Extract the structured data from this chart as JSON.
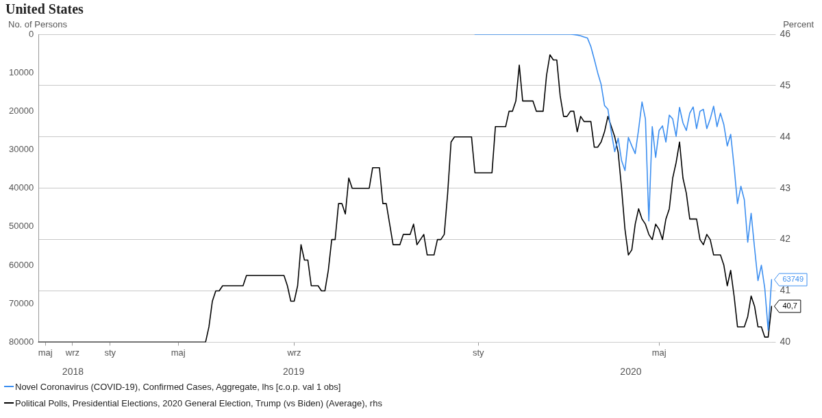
{
  "chart_data": {
    "type": "line",
    "title": "United States",
    "ylabel": "No. of Persons",
    "y2label": "Percent",
    "categories": [
      null,
      null,
      "maj",
      null,
      null,
      null,
      null,
      null,
      null,
      null,
      "wrz",
      null,
      null,
      null,
      null,
      null,
      null,
      null,
      null,
      null,
      null,
      "sty",
      null,
      null,
      null,
      null,
      null,
      null,
      null,
      null,
      null,
      null,
      null,
      null,
      null,
      null,
      null,
      null,
      null,
      null,
      null,
      "maj",
      null,
      null,
      null,
      null,
      null,
      null,
      null,
      null,
      null,
      null,
      null,
      null,
      null,
      null,
      null,
      null,
      null,
      null,
      null,
      null,
      null,
      null,
      null,
      null,
      null,
      null,
      null,
      null,
      null,
      null,
      null,
      null,
      null,
      "wrz",
      null,
      null,
      null,
      null,
      null,
      null,
      null,
      null,
      null,
      null,
      null,
      null,
      null,
      null,
      null,
      null,
      null,
      null,
      null,
      null,
      null,
      null,
      null,
      null,
      null,
      null,
      null,
      null,
      null,
      null,
      null,
      null,
      null,
      null,
      null,
      null,
      null,
      null,
      null,
      null,
      null,
      null,
      null,
      null,
      null,
      null,
      null,
      null,
      null,
      null,
      null,
      null,
      null,
      "sty",
      null,
      null,
      null,
      null,
      null,
      null,
      null,
      null,
      null,
      null,
      null,
      null,
      null,
      null,
      null,
      null,
      null,
      null,
      null,
      null,
      null,
      null,
      null,
      null,
      null,
      null,
      null,
      null,
      null,
      null,
      null,
      null,
      null,
      null,
      null,
      null,
      null,
      null,
      null,
      null,
      null,
      null,
      null,
      null,
      null,
      null,
      null,
      null,
      null,
      null,
      null,
      null,
      "maj",
      null,
      null,
      null,
      null,
      null,
      null,
      null,
      null,
      null,
      null,
      null,
      null,
      null,
      null,
      null,
      null,
      null,
      null,
      null,
      null,
      null,
      null,
      null,
      null,
      null,
      null,
      null,
      null,
      null,
      null,
      null,
      null,
      null
    ],
    "series": [
      {
        "name": "Novel Coronavirus (COVID-19), Confirmed Cases, Aggregate, lhs [c.o.p. val 1 obs]",
        "color": "#3b8ef0",
        "values": [
          null,
          null,
          null,
          null,
          null,
          null,
          null,
          null,
          null,
          null,
          null,
          null,
          null,
          null,
          null,
          null,
          null,
          null,
          null,
          null,
          null,
          null,
          null,
          null,
          null,
          null,
          null,
          null,
          null,
          null,
          null,
          null,
          null,
          null,
          null,
          null,
          null,
          null,
          null,
          null,
          null,
          null,
          null,
          null,
          null,
          null,
          null,
          null,
          null,
          null,
          null,
          null,
          null,
          null,
          null,
          null,
          null,
          null,
          null,
          null,
          null,
          null,
          null,
          null,
          null,
          null,
          null,
          null,
          null,
          null,
          null,
          null,
          null,
          null,
          null,
          null,
          null,
          null,
          null,
          null,
          null,
          null,
          null,
          null,
          null,
          null,
          null,
          null,
          null,
          null,
          null,
          null,
          null,
          null,
          null,
          null,
          null,
          null,
          null,
          null,
          null,
          null,
          null,
          null,
          null,
          null,
          null,
          null,
          null,
          null,
          null,
          null,
          null,
          null,
          null,
          null,
          null,
          null,
          null,
          null,
          null,
          null,
          null,
          null,
          null,
          null,
          null,
          null,
          0,
          0,
          0,
          0,
          0,
          0,
          0,
          0,
          0,
          0,
          0,
          0,
          0,
          0,
          0,
          0,
          0,
          0,
          0,
          0,
          0,
          0,
          0,
          0,
          0,
          0,
          0,
          0,
          0,
          100,
          200,
          400,
          700,
          1000,
          3200,
          6500,
          10000,
          13000,
          18500,
          19500,
          25500,
          30500,
          27000,
          32800,
          35400,
          26800,
          29000,
          31000,
          24700,
          17600,
          22000,
          48500,
          24000,
          32000,
          25000,
          23800,
          28000,
          21000,
          22000,
          26500,
          19000,
          23000,
          25000,
          20500,
          18900,
          24500,
          20000,
          19500,
          24500,
          22000,
          18700,
          24000,
          20500,
          23500,
          29000,
          26000,
          34400,
          44000,
          39500,
          43000,
          54000,
          46500,
          55500,
          64000,
          60000,
          66000,
          76900,
          63749
        ],
        "value_labels": [
          null,
          null,
          null,
          null,
          null,
          null,
          null,
          null,
          null,
          null,
          null,
          null,
          null,
          null,
          null,
          null,
          null,
          null,
          null,
          null,
          null,
          null,
          null,
          null,
          null,
          null,
          null,
          null,
          null,
          null,
          null,
          null,
          null,
          null,
          null,
          null,
          null,
          null,
          null,
          null,
          null,
          null,
          null,
          null,
          null,
          null,
          null,
          null,
          null,
          null,
          null,
          null,
          null,
          null,
          null,
          null,
          null,
          null,
          null,
          null,
          null,
          null,
          null,
          null,
          null,
          null,
          null,
          null,
          null,
          null,
          null,
          null,
          null,
          null,
          null,
          null,
          null,
          null,
          null,
          null,
          null,
          null,
          null,
          null,
          null,
          null,
          null,
          null,
          null,
          null,
          null,
          null,
          null,
          null,
          null,
          null,
          null,
          null,
          null,
          null,
          null,
          null,
          null,
          null,
          null,
          null,
          null,
          null,
          null,
          null,
          null,
          null,
          null,
          null,
          null,
          null,
          null,
          null,
          null,
          null,
          null,
          null,
          null,
          null,
          null,
          null,
          null,
          null,
          null,
          null,
          null,
          null,
          null,
          null,
          null,
          null,
          null,
          null,
          null,
          null,
          null,
          null,
          null,
          null,
          null,
          null,
          null,
          null,
          null,
          null,
          null,
          null,
          null,
          null,
          null,
          null,
          null,
          null,
          null,
          null,
          null,
          null,
          null,
          null,
          null,
          null,
          null,
          null,
          null,
          null,
          null,
          null,
          null,
          null,
          null,
          null,
          null,
          null,
          null,
          null,
          null,
          null,
          null,
          null,
          null,
          null,
          null,
          null,
          null,
          null,
          null,
          null,
          null,
          null,
          null,
          null,
          null,
          null,
          null,
          null,
          null,
          null,
          null,
          null,
          null,
          null,
          null,
          null,
          null,
          null,
          null,
          null,
          null,
          null,
          null,
          "63749"
        ]
      },
      {
        "name": "Political Polls, Presidential Elections, 2020 General Election, Trump (vs Biden) (Average), rhs",
        "color": "#000000",
        "axis": "y2",
        "values": [
          40,
          40,
          40,
          40,
          40,
          40,
          40,
          40,
          40,
          40,
          40,
          40,
          40,
          40,
          40,
          40,
          40,
          40,
          40,
          40,
          40,
          40,
          40,
          40,
          40,
          40,
          40,
          40,
          40,
          40,
          40,
          40,
          40,
          40,
          40,
          40,
          40,
          40,
          40,
          40,
          40,
          40,
          40,
          40,
          40,
          40,
          40,
          40,
          40,
          40,
          40.3,
          40.8,
          41.0,
          41.0,
          41.1,
          41.1,
          41.1,
          41.1,
          41.1,
          41.1,
          41.1,
          41.3,
          41.3,
          41.3,
          41.3,
          41.3,
          41.3,
          41.3,
          41.3,
          41.3,
          41.3,
          41.3,
          41.3,
          41.1,
          40.8,
          40.8,
          41.1,
          41.9,
          41.6,
          41.6,
          41.1,
          41.1,
          41.1,
          41.0,
          41.0,
          41.4,
          42.0,
          42.0,
          42.7,
          42.7,
          42.5,
          43.2,
          43.0,
          43.0,
          43.0,
          43.0,
          43.0,
          43.0,
          43.4,
          43.4,
          43.4,
          42.7,
          42.7,
          42.3,
          41.9,
          41.9,
          41.9,
          42.1,
          42.1,
          42.1,
          42.3,
          41.9,
          42.0,
          42.1,
          41.7,
          41.7,
          41.7,
          42.0,
          42.0,
          42.1,
          42.9,
          43.9,
          44.0,
          44.0,
          44.0,
          44.0,
          44.0,
          44.0,
          43.3,
          43.3,
          43.3,
          43.3,
          43.3,
          43.3,
          44.2,
          44.2,
          44.2,
          44.2,
          44.5,
          44.5,
          44.7,
          45.4,
          44.7,
          44.7,
          44.7,
          44.7,
          44.5,
          44.5,
          44.5,
          45.2,
          45.6,
          45.5,
          45.5,
          44.8,
          44.4,
          44.4,
          44.5,
          44.5,
          44.1,
          44.4,
          44.3,
          44.3,
          44.3,
          43.8,
          43.8,
          43.9,
          44.1,
          44.4,
          44.2,
          44.0,
          43.7,
          43.0,
          42.2,
          41.7,
          41.8,
          42.3,
          42.6,
          42.4,
          42.3,
          42.1,
          42.0,
          42.3,
          42.2,
          42.0,
          42.4,
          42.6,
          43.2,
          43.5,
          43.9,
          43.2,
          42.9,
          42.4,
          42.4,
          42.4,
          42.0,
          41.9,
          42.1,
          42.0,
          41.7,
          41.7,
          41.7,
          41.5,
          41.1,
          41.4,
          40.9,
          40.3,
          40.3,
          40.3,
          40.5,
          40.9,
          40.7,
          40.3,
          40.3,
          40.1,
          40.1,
          40.7
        ],
        "value_labels": [
          null,
          null,
          null,
          null,
          null,
          null,
          null,
          null,
          null,
          null,
          null,
          null,
          null,
          null,
          null,
          null,
          null,
          null,
          null,
          null,
          null,
          null,
          null,
          null,
          null,
          null,
          null,
          null,
          null,
          null,
          null,
          null,
          null,
          null,
          null,
          null,
          null,
          null,
          null,
          null,
          null,
          null,
          null,
          null,
          null,
          null,
          null,
          null,
          null,
          null,
          null,
          null,
          null,
          null,
          null,
          null,
          null,
          null,
          null,
          null,
          null,
          null,
          null,
          null,
          null,
          null,
          null,
          null,
          null,
          null,
          null,
          null,
          null,
          null,
          null,
          null,
          null,
          null,
          null,
          null,
          null,
          null,
          null,
          null,
          null,
          null,
          null,
          null,
          null,
          null,
          null,
          null,
          null,
          null,
          null,
          null,
          null,
          null,
          null,
          null,
          null,
          null,
          null,
          null,
          null,
          null,
          null,
          null,
          null,
          null,
          null,
          null,
          null,
          null,
          null,
          null,
          null,
          null,
          null,
          null,
          null,
          null,
          null,
          null,
          null,
          null,
          null,
          null,
          null,
          null,
          null,
          null,
          null,
          null,
          null,
          null,
          null,
          null,
          null,
          null,
          null,
          null,
          null,
          null,
          null,
          null,
          null,
          null,
          null,
          null,
          null,
          null,
          null,
          null,
          null,
          null,
          null,
          null,
          null,
          null,
          null,
          null,
          null,
          null,
          null,
          null,
          null,
          null,
          null,
          null,
          null,
          null,
          null,
          null,
          null,
          null,
          null,
          null,
          null,
          null,
          null,
          null,
          null,
          null,
          null,
          null,
          null,
          null,
          null,
          null,
          null,
          null,
          null,
          null,
          null,
          null,
          null,
          null,
          null,
          null,
          null,
          null,
          null,
          null,
          null,
          null,
          null,
          null,
          null,
          null,
          null,
          null,
          null,
          null,
          null,
          "40,7"
        ]
      }
    ],
    "ylim": [
      80000,
      0
    ],
    "yticks": [
      0,
      10000,
      20000,
      30000,
      40000,
      50000,
      60000,
      70000,
      80000
    ],
    "y2lim": [
      40,
      46
    ],
    "y2ticks": [
      40,
      41,
      42,
      43,
      44,
      45,
      46
    ],
    "annotations": [
      "2018",
      "2019",
      "2020"
    ],
    "grid": "y",
    "legend": "bottom",
    "marker": "none",
    "line_style": "solid"
  }
}
